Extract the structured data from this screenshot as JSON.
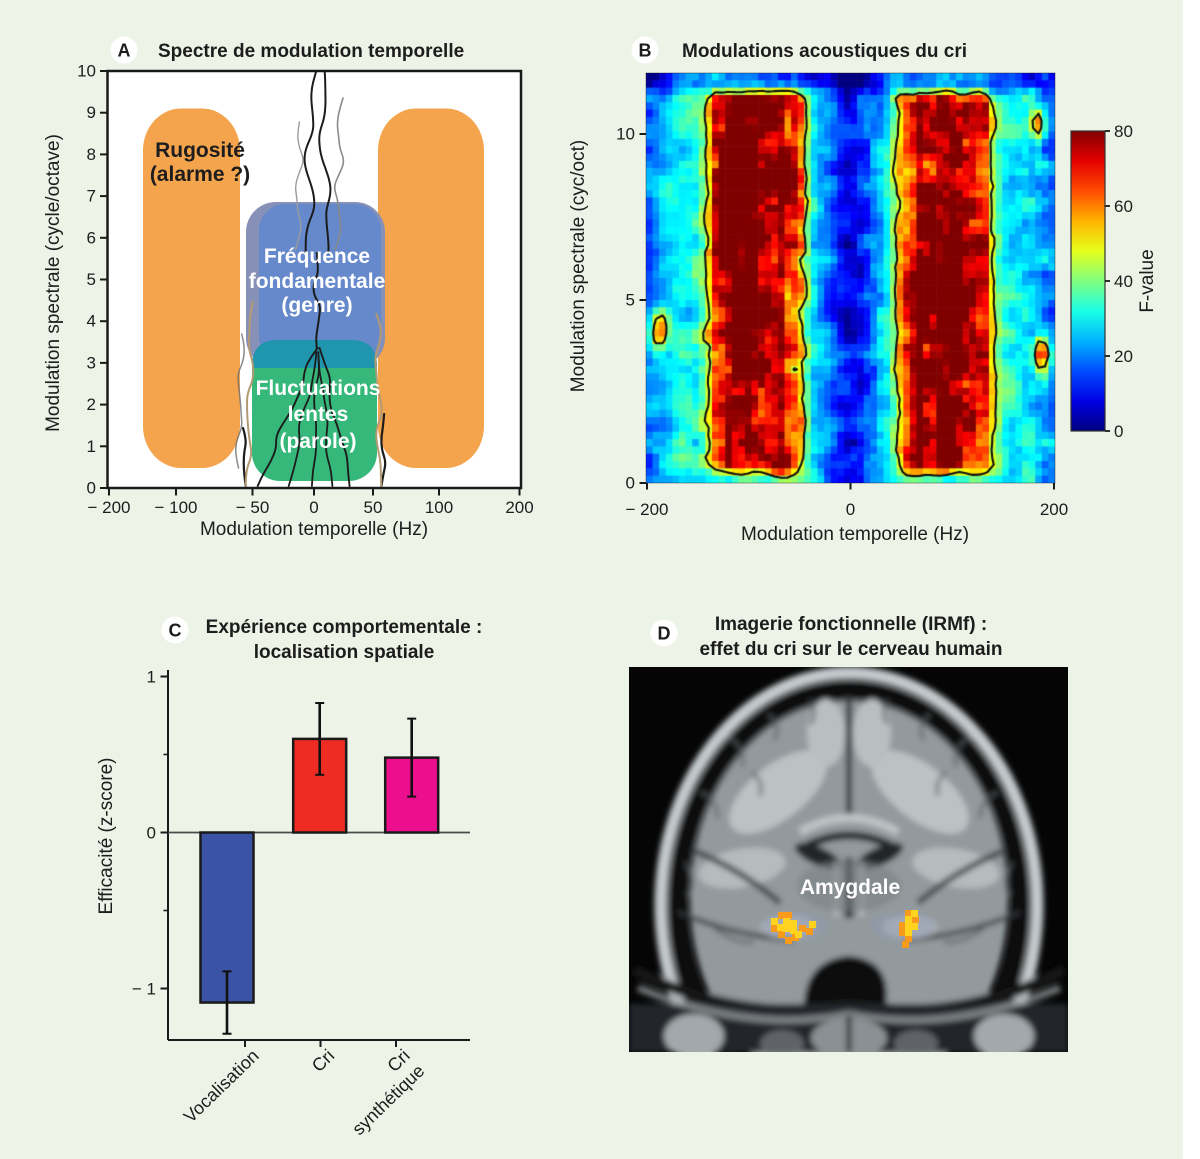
{
  "figure": {
    "background_color": "#eef3e7",
    "panels": [
      {
        "id": "A",
        "letter": "A",
        "title": "Spectre de modulation temporelle",
        "xlabel": "Modulation temporelle (Hz)",
        "ylabel": "Modulation spectrale (cycle/octave)",
        "x_tick_labels": [
          "− 200",
          "− 100",
          "− 50",
          "0",
          "50",
          "100",
          "200"
        ],
        "y_tick_labels": [
          "0",
          "1",
          "2",
          "3",
          "4",
          "5",
          "6",
          "7",
          "8",
          "9",
          "10"
        ],
        "regions": [
          {
            "name": "rugosite",
            "label_lines": [
              "Rugosité",
              "(alarme ?)"
            ],
            "color": "#f4a44d"
          },
          {
            "name": "frequence-fondamentale",
            "label_lines": [
              "Fréquence",
              "fondamentale",
              "(genre)"
            ],
            "color": "#6589cb"
          },
          {
            "name": "fluctuations-lentes",
            "label_lines": [
              "Fluctuations",
              "lentes",
              "(parole)"
            ],
            "color": "#35b87a"
          }
        ]
      },
      {
        "id": "B",
        "letter": "B",
        "title": "Modulations acoustiques du cri",
        "xlabel": "Modulation temporelle (Hz)",
        "ylabel": "Modulation spectrale (cyc/oct)",
        "x_tick_labels": [
          "− 200",
          "0",
          "200"
        ],
        "y_tick_labels": [
          "0",
          "5",
          "10"
        ],
        "colorbar": {
          "label": "F-value",
          "tick_labels": [
            "0",
            "20",
            "40",
            "60",
            "80"
          ]
        }
      },
      {
        "id": "C",
        "letter": "C",
        "title_lines": [
          "Expérience comportementale :",
          "localisation spatiale"
        ],
        "ylabel": "Efficacité (z-score)",
        "y_tick_labels": [
          "1",
          "0",
          "− 1"
        ]
      },
      {
        "id": "D",
        "letter": "D",
        "title_lines": [
          "Imagerie fonctionnelle (IRMf) :",
          "effet du cri sur le cerveau humain"
        ],
        "annotation": "Amygdale"
      }
    ]
  },
  "chart_data": [
    {
      "panel": "A",
      "type": "diagram",
      "title": "Spectre de modulation temporelle",
      "xlabel": "Modulation temporelle (Hz)",
      "ylabel": "Modulation spectrale (cycle/octave)",
      "x_ticks": [
        -200,
        -100,
        -50,
        0,
        50,
        100,
        200
      ],
      "y_ticks": [
        0,
        1,
        2,
        3,
        4,
        5,
        6,
        7,
        8,
        9,
        10
      ],
      "regions": [
        {
          "label": "Rugosité (alarme ?)",
          "x_hz": [
            [
              -145,
              -52
            ],
            [
              54,
              152
            ]
          ],
          "y_cyc": [
            0.4,
            9.1
          ],
          "color": "#f4a44d"
        },
        {
          "label": "Fréquence fondamentale (genre)",
          "x_hz": [
            [
              -55,
              55
            ]
          ],
          "y_cyc": [
            2.9,
            6.85
          ],
          "color": "#6589cb"
        },
        {
          "label": "Fluctuations lentes (parole)",
          "x_hz": [
            [
              -48,
              51
            ]
          ],
          "y_cyc": [
            0.15,
            3.55
          ],
          "color": "#35b87a"
        }
      ]
    },
    {
      "panel": "B",
      "type": "heatmap",
      "title": "Modulations acoustiques du cri",
      "x_range_hz": [
        -200,
        200
      ],
      "y_range_cyc": [
        0,
        11.85
      ],
      "value_name": "F-value",
      "value_range": [
        0,
        80
      ],
      "x_ticks": [
        -200,
        0,
        200
      ],
      "y_ticks": [
        0,
        5,
        10
      ],
      "colorbar_ticks": [
        0,
        20,
        40,
        60,
        80
      ],
      "hotspot_centers_hz": [
        -92,
        92
      ],
      "colormap": "jet",
      "contour_threshold": 47.5
    },
    {
      "panel": "C",
      "type": "bar",
      "title": "Expérience comportementale : localisation spatiale",
      "categories": [
        "Vocalisation",
        "Cri",
        "Cri synthétique"
      ],
      "category_label_lines": [
        [
          "Vocalisation"
        ],
        [
          "Cri"
        ],
        [
          "Cri",
          "synthétique"
        ]
      ],
      "values": [
        -1.09,
        0.6,
        0.48
      ],
      "errors": [
        0.2,
        0.23,
        0.25
      ],
      "colors": [
        "#3a53a5",
        "#ee2c23",
        "#eb0f8d"
      ],
      "ylabel": "Efficacité (z-score)",
      "y_ticks": [
        -1,
        0,
        1
      ],
      "ylim": [
        -1.35,
        1.08
      ]
    },
    {
      "panel": "D",
      "type": "image",
      "title": "Imagerie fonctionnelle (IRMf) : effet du cri sur le cerveau humain",
      "annotation": "Amygdale"
    }
  ]
}
